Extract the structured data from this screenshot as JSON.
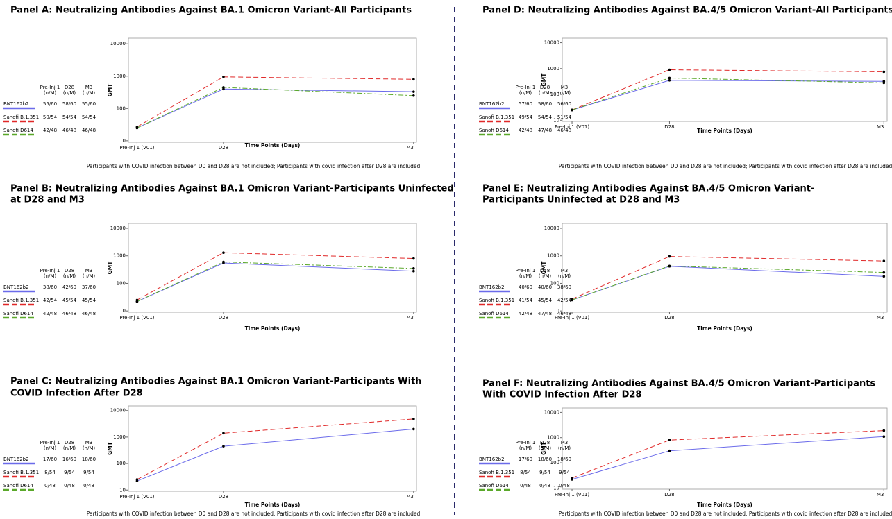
{
  "chart_data": [
    {
      "type": "line",
      "title": [
        "Panel A: Neutralizing Antibodies Against BA.1 Omicron Variant-All Participants"
      ],
      "categories": [
        "Pre-Inj 1 (V01)",
        "D28",
        "M3"
      ],
      "xlabel": "Time Points (Days)",
      "ylabel": "GMT",
      "log": true,
      "ylim": [
        9,
        15000
      ],
      "yticks": [
        10,
        100,
        1000,
        10000
      ],
      "table_columns": [
        "Pre-Inj 1",
        "D28",
        "M3"
      ],
      "table_unit": "(n/M)",
      "series": [
        {
          "name": "BNT162b2",
          "color": "#6b6bea",
          "values": [
            25,
            400,
            330
          ],
          "counts": [
            "55/60",
            "58/60",
            "55/60"
          ]
        },
        {
          "name": "Sanofi B.1.351",
          "color": "#e02828",
          "values": [
            27,
            950,
            800
          ],
          "counts": [
            "50/54",
            "54/54",
            "54/54"
          ]
        },
        {
          "name": "Sanofi D614",
          "color": "#5aa82a",
          "values": [
            25,
            450,
            250
          ],
          "counts": [
            "42/48",
            "46/48",
            "46/48"
          ]
        }
      ],
      "footnote": "Participants with COVID infection between D0 and D28 are not included; Participants with covid infection after D28 are included"
    },
    {
      "type": "line",
      "title": [
        "Panel B: Neutralizing Antibodies Against BA.1 Omicron Variant-Participants Uninfected",
        "at D28 and M3"
      ],
      "categories": [
        "Pre-Inj 1 (V01)",
        "D28",
        "M3"
      ],
      "xlabel": "Time Points (Days)",
      "ylabel": "GMT",
      "log": true,
      "ylim": [
        9,
        15000
      ],
      "yticks": [
        10,
        100,
        1000,
        10000
      ],
      "table_columns": [
        "Pre-Inj 1",
        "D28",
        "M3"
      ],
      "table_unit": "(n/M)",
      "series": [
        {
          "name": "BNT162b2",
          "color": "#6b6bea",
          "values": [
            22,
            550,
            280
          ],
          "counts": [
            "38/60",
            "42/60",
            "37/60"
          ]
        },
        {
          "name": "Sanofi B.1.351",
          "color": "#e02828",
          "values": [
            25,
            1300,
            800
          ],
          "counts": [
            "42/54",
            "45/54",
            "45/54"
          ]
        },
        {
          "name": "Sanofi D614",
          "color": "#5aa82a",
          "values": [
            22,
            600,
            350
          ],
          "counts": [
            "42/48",
            "46/48",
            "46/48"
          ]
        }
      ]
    },
    {
      "type": "line",
      "title": [
        "Panel C: Neutralizing Antibodies Against BA.1 Omicron Variant-Participants With",
        "COVID Infection After D28"
      ],
      "categories": [
        "Pre-Inj 1 (V01)",
        "D28",
        "M3"
      ],
      "xlabel": "Time Points (Days)",
      "ylabel": "GMT",
      "log": true,
      "ylim": [
        9,
        15000
      ],
      "yticks": [
        10,
        100,
        1000,
        10000
      ],
      "table_columns": [
        "Pre-Inj 1",
        "D28",
        "M3"
      ],
      "table_unit": "(n/M)",
      "series": [
        {
          "name": "BNT162b2",
          "color": "#6b6bea",
          "values": [
            22,
            450,
            2000
          ],
          "counts": [
            "17/60",
            "16/60",
            "18/60"
          ]
        },
        {
          "name": "Sanofi B.1.351",
          "color": "#e02828",
          "values": [
            25,
            1400,
            4800
          ],
          "counts": [
            "8/54",
            "9/54",
            "9/54"
          ]
        },
        {
          "name": "Sanofi D614",
          "color": "#5aa82a",
          "values": [
            null,
            null,
            null
          ],
          "counts": [
            "0/48",
            "0/48",
            "0/48"
          ]
        }
      ],
      "footnote": "Participants with COVID infection between D0 and D28 are not included; Participants with covid infection after D28 are included"
    },
    {
      "type": "line",
      "title": [
        "Panel D: Neutralizing Antibodies Against BA.4/5 Omicron Variant-All Participants"
      ],
      "categories": [
        "Pre-Inj 1 (V01)",
        "D28",
        "M3"
      ],
      "xlabel": "Time Points (Days)",
      "ylabel": "GMT",
      "log": true,
      "ylim": [
        9,
        15000
      ],
      "yticks": [
        10,
        100,
        1000,
        10000
      ],
      "table_columns": [
        "Pre-Inj 1",
        "D28",
        "M3"
      ],
      "table_unit": "(n/M)",
      "series": [
        {
          "name": "BNT162b2",
          "color": "#6b6bea",
          "values": [
            25,
            350,
            320
          ],
          "counts": [
            "57/60",
            "58/60",
            "56/60"
          ]
        },
        {
          "name": "Sanofi B.1.351",
          "color": "#e02828",
          "values": [
            25,
            900,
            750
          ],
          "counts": [
            "49/54",
            "54/54",
            "51/54"
          ]
        },
        {
          "name": "Sanofi D614",
          "color": "#5aa82a",
          "values": [
            25,
            430,
            280
          ],
          "counts": [
            "42/48",
            "47/48",
            "46/48"
          ]
        }
      ],
      "footnote": "Participants with COVID infection between D0 and D28 are not included; Participants with covid infection after D28 are included"
    },
    {
      "type": "line",
      "title": [
        "Panel E: Neutralizing Antibodies Against BA.4/5 Omicron Variant-",
        "Participants Uninfected at D28 and M3"
      ],
      "categories": [
        "Pre-Inj 1 (V01)",
        "D28",
        "M3"
      ],
      "xlabel": "Time Points (Days)",
      "ylabel": "GMT",
      "log": true,
      "ylim": [
        9,
        15000
      ],
      "yticks": [
        10,
        100,
        1000,
        10000
      ],
      "table_columns": [
        "Pre-Inj 1",
        "D28",
        "M3"
      ],
      "table_unit": "(n/M)",
      "series": [
        {
          "name": "BNT162b2",
          "color": "#6b6bea",
          "values": [
            25,
            420,
            180
          ],
          "counts": [
            "40/60",
            "40/60",
            "38/60"
          ]
        },
        {
          "name": "Sanofi B.1.351",
          "color": "#e02828",
          "values": [
            27,
            950,
            650
          ],
          "counts": [
            "41/54",
            "45/54",
            "42/54"
          ]
        },
        {
          "name": "Sanofi D614",
          "color": "#5aa82a",
          "values": [
            25,
            430,
            250
          ],
          "counts": [
            "42/48",
            "47/48",
            "46/48"
          ]
        }
      ]
    },
    {
      "type": "line",
      "title": [
        "Panel F: Neutralizing Antibodies Against BA.4/5 Omicron Variant-Participants",
        "With COVID Infection After D28"
      ],
      "categories": [
        "Pre-Inj 1 (V01)",
        "D28",
        "M3"
      ],
      "xlabel": "Time Points (Days)",
      "ylabel": "GMT",
      "log": true,
      "ylim": [
        9,
        15000
      ],
      "yticks": [
        10,
        100,
        1000,
        10000
      ],
      "table_columns": [
        "Pre-Inj 1",
        "D28",
        "M3"
      ],
      "table_unit": "(n/M)",
      "series": [
        {
          "name": "BNT162b2",
          "color": "#6b6bea",
          "values": [
            22,
            300,
            1100
          ],
          "counts": [
            "17/60",
            "18/60",
            "18/60"
          ]
        },
        {
          "name": "Sanofi B.1.351",
          "color": "#e02828",
          "values": [
            25,
            800,
            1900
          ],
          "counts": [
            "8/54",
            "9/54",
            "9/54"
          ]
        },
        {
          "name": "Sanofi D614",
          "color": "#5aa82a",
          "values": [
            null,
            null,
            null
          ],
          "counts": [
            "0/48",
            "0/48",
            "0/48"
          ]
        }
      ],
      "footnote": "Participants with COVID infection between D0 and D28 are not included; Participants with covid infection after D28 are included"
    }
  ]
}
